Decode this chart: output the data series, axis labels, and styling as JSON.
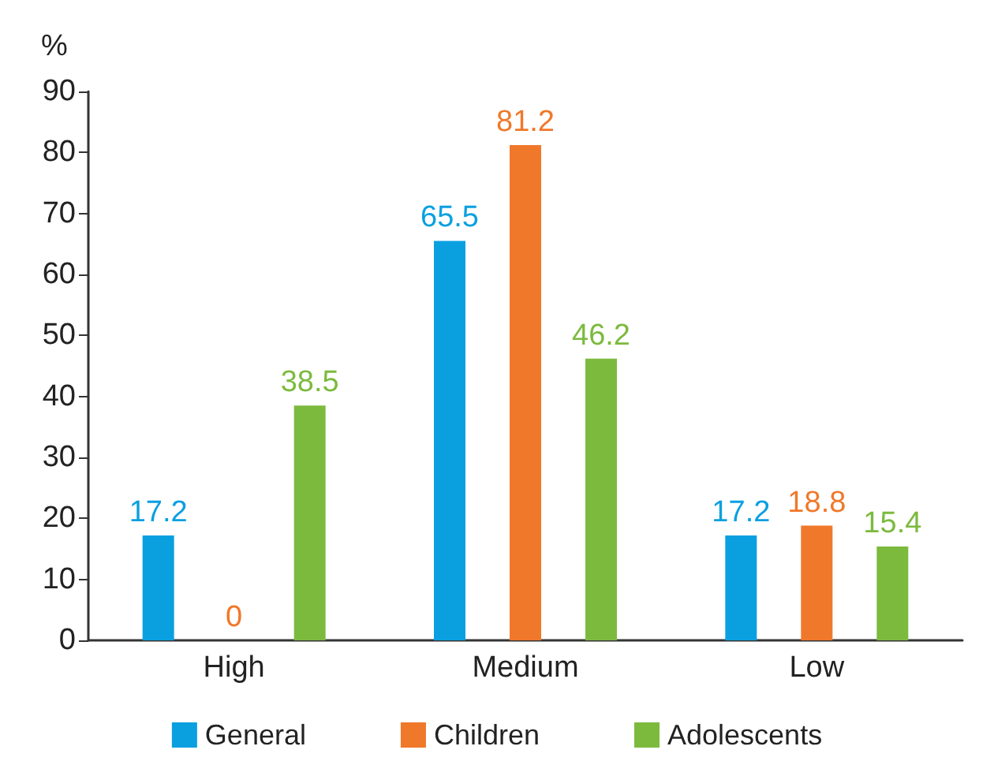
{
  "chart_data": {
    "type": "bar",
    "ylabel": "%",
    "categories": [
      "High",
      "Medium",
      "Low"
    ],
    "series": [
      {
        "name": "General",
        "color": "#0aa0e0",
        "values": [
          17.2,
          65.5,
          17.2
        ]
      },
      {
        "name": "Children",
        "color": "#f0782a",
        "values": [
          0,
          81.2,
          18.8
        ]
      },
      {
        "name": "Adolescents",
        "color": "#7cba3e",
        "values": [
          38.5,
          46.2,
          15.4
        ]
      }
    ],
    "ylim": [
      0,
      90
    ],
    "yticks": [
      0,
      10,
      20,
      30,
      40,
      50,
      60,
      70,
      80,
      90
    ],
    "grid": false,
    "legend": "bottom",
    "data_labels": true
  }
}
